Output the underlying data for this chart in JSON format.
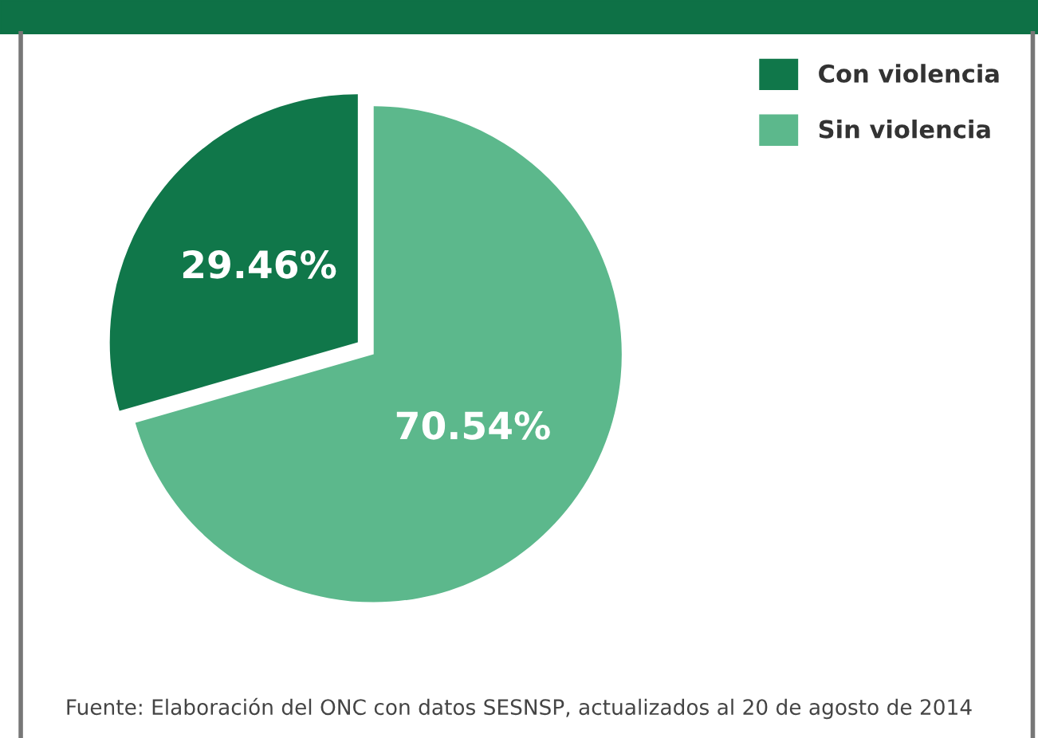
{
  "chart_data": {
    "type": "pie",
    "categories": [
      "Con violencia",
      "Sin violencia"
    ],
    "values": [
      29.46,
      70.54
    ],
    "colors": [
      "#10774a",
      "#5cb88c"
    ],
    "value_labels": [
      "29.46%",
      "70.54%"
    ],
    "legend": "top right",
    "annotations": [
      "Fuente: Elaboración del ONC con datos SESNSP, actualizados al 20 de agosto de 2014"
    ]
  }
}
